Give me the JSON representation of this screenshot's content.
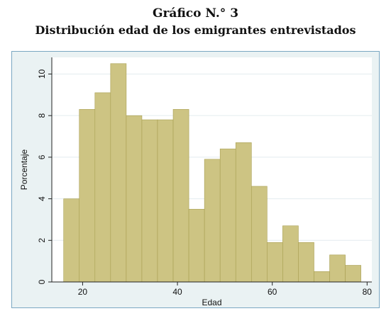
{
  "header": {
    "title": "Gráfico N.° 3",
    "subtitle": "Distribución edad de los emigrantes entrevistados"
  },
  "colors": {
    "bar_fill": "#cdc483",
    "bar_stroke": "#a89f52",
    "plot_bg": "#ffffff",
    "frame_bg": "#eaf2f3",
    "frame_border": "#7aa7c2",
    "grid": "#e3ecef"
  },
  "chart_data": {
    "type": "bar",
    "histogram": true,
    "xlabel": "Edad",
    "ylabel": "Porcentaje",
    "xlim": [
      13.5,
      81
    ],
    "ylim": [
      0,
      10.8
    ],
    "x_ticks": [
      20,
      40,
      60,
      80
    ],
    "y_ticks": [
      0,
      2,
      4,
      6,
      8,
      10
    ],
    "grid": true,
    "bin_width": 3.3,
    "bins": [
      {
        "start": 16.0,
        "value": 4.0
      },
      {
        "start": 19.3,
        "value": 8.3
      },
      {
        "start": 22.6,
        "value": 9.1
      },
      {
        "start": 25.9,
        "value": 10.5
      },
      {
        "start": 29.2,
        "value": 8.0
      },
      {
        "start": 32.5,
        "value": 7.8
      },
      {
        "start": 35.8,
        "value": 7.8
      },
      {
        "start": 39.1,
        "value": 8.3
      },
      {
        "start": 42.4,
        "value": 3.5
      },
      {
        "start": 45.7,
        "value": 5.9
      },
      {
        "start": 49.0,
        "value": 6.4
      },
      {
        "start": 52.3,
        "value": 6.7
      },
      {
        "start": 55.6,
        "value": 4.6
      },
      {
        "start": 58.9,
        "value": 1.9
      },
      {
        "start": 62.2,
        "value": 2.7
      },
      {
        "start": 65.5,
        "value": 1.9
      },
      {
        "start": 68.8,
        "value": 0.5
      },
      {
        "start": 72.1,
        "value": 1.3
      },
      {
        "start": 75.4,
        "value": 0.8
      }
    ]
  }
}
